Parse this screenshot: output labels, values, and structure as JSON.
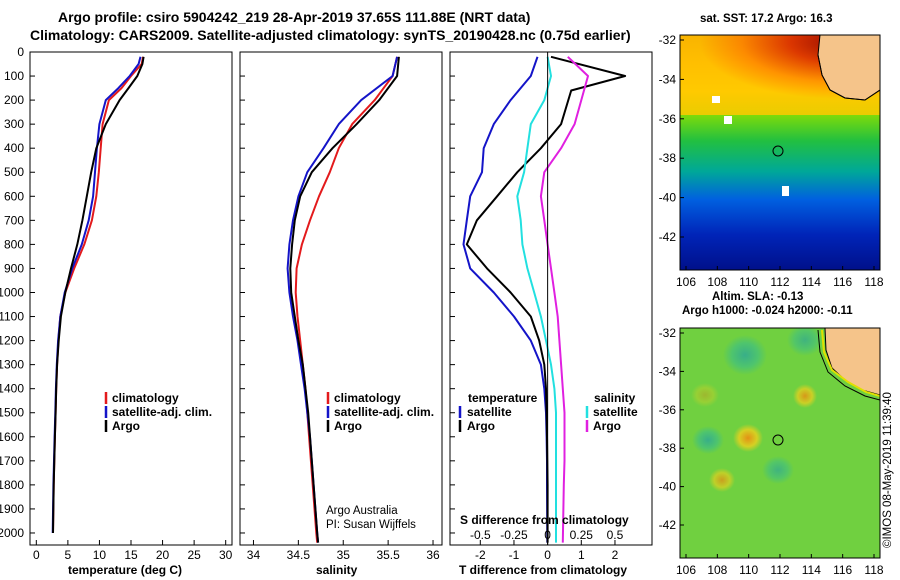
{
  "header": {
    "line1": "Argo profile: csiro 5904242_219 28-Apr-2019 37.65S 111.88E (NRT data)",
    "line2": "Climatology: CARS2009. Satellite-adjusted climatology: synTS_20190428.nc (0.75d earlier)"
  },
  "colors": {
    "climatology": "#e31a1c",
    "satellite": "#1414c8",
    "argo": "#000000",
    "t_diff": "#000000",
    "t_diff_sat": "#1414c8",
    "s_diff_sat": "#22e0e0",
    "s_diff_argo": "#e020e0"
  },
  "chart_data": [
    {
      "name": "temperature",
      "type": "line",
      "xlabel": "temperature (deg C)",
      "xlim": [
        -1,
        31
      ],
      "xticks": [
        0,
        5,
        10,
        15,
        20,
        25,
        30
      ],
      "ylim": [
        2050,
        0
      ],
      "yticks": [
        0,
        100,
        200,
        300,
        400,
        500,
        600,
        700,
        800,
        900,
        1000,
        1100,
        1200,
        1300,
        1400,
        1500,
        1600,
        1700,
        1800,
        1900,
        2000
      ],
      "legend": [
        "climatology",
        "satellite-adj. clim.",
        "Argo"
      ],
      "series": [
        {
          "name": "climatology",
          "x": [
            16.9,
            16.7,
            15.0,
            13.5,
            11.5,
            10.5,
            10.2,
            9.9,
            9.5,
            8.8,
            7.6,
            6.0,
            4.6,
            3.8,
            3.5,
            3.3,
            3.15,
            3.05,
            2.95,
            2.85,
            2.75,
            2.65
          ],
          "y": [
            20,
            50,
            100,
            150,
            200,
            300,
            400,
            500,
            600,
            700,
            800,
            900,
            1000,
            1100,
            1200,
            1300,
            1400,
            1500,
            1600,
            1700,
            1800,
            2000
          ]
        },
        {
          "name": "satellite-adj. clim.",
          "x": [
            16.5,
            16.2,
            14.8,
            13.0,
            11.0,
            10.0,
            9.6,
            9.3,
            9.0,
            8.3,
            7.2,
            5.7,
            4.5,
            3.8,
            3.45,
            3.25,
            3.1,
            3.0,
            2.9,
            2.8,
            2.7,
            2.6
          ],
          "y": [
            20,
            50,
            100,
            150,
            200,
            300,
            400,
            500,
            600,
            700,
            800,
            900,
            1000,
            1100,
            1200,
            1300,
            1400,
            1500,
            1600,
            1700,
            1800,
            2000
          ]
        },
        {
          "name": "Argo",
          "x": [
            17.0,
            16.8,
            16.0,
            14.6,
            13.2,
            11.0,
            9.5,
            8.7,
            8.0,
            7.3,
            6.5,
            5.5,
            4.6,
            3.9,
            3.55,
            3.3,
            3.15,
            3.05,
            2.95,
            2.85,
            2.75,
            2.65
          ],
          "y": [
            20,
            50,
            100,
            150,
            200,
            300,
            400,
            500,
            600,
            700,
            800,
            900,
            1000,
            1100,
            1200,
            1300,
            1400,
            1500,
            1600,
            1700,
            1800,
            2000
          ]
        }
      ]
    },
    {
      "name": "salinity",
      "type": "line",
      "xlabel": "salinity",
      "xlim": [
        33.85,
        36.1
      ],
      "xticks": [
        34,
        34.5,
        35,
        35.5,
        36
      ],
      "ylim": [
        2050,
        0
      ],
      "legend": [
        "climatology",
        "satellite-adj. clim.",
        "Argo"
      ],
      "annotation": [
        "Argo Australia",
        "PI: Susan Wijffels"
      ],
      "series": [
        {
          "name": "climatology",
          "x": [
            35.6,
            35.55,
            35.35,
            35.1,
            34.95,
            34.85,
            34.73,
            34.63,
            34.54,
            34.48,
            34.47,
            34.49,
            34.52,
            34.55,
            34.58,
            34.6,
            34.62,
            34.64,
            34.66,
            34.68,
            34.7,
            34.71
          ],
          "y": [
            20,
            100,
            200,
            300,
            400,
            500,
            600,
            700,
            800,
            900,
            1000,
            1100,
            1200,
            1300,
            1400,
            1500,
            1600,
            1700,
            1800,
            1900,
            2000,
            2040
          ]
        },
        {
          "name": "satellite-adj. clim.",
          "x": [
            35.6,
            35.55,
            35.2,
            34.95,
            34.78,
            34.6,
            34.5,
            34.44,
            34.4,
            34.38,
            34.4,
            34.44,
            34.49,
            34.53,
            34.57,
            34.6,
            34.63,
            34.65,
            34.67,
            34.69,
            34.71,
            34.72
          ],
          "y": [
            20,
            100,
            200,
            300,
            400,
            500,
            600,
            700,
            800,
            900,
            1000,
            1100,
            1200,
            1300,
            1400,
            1500,
            1600,
            1700,
            1800,
            1900,
            2000,
            2040
          ]
        },
        {
          "name": "Argo",
          "x": [
            35.62,
            35.6,
            35.4,
            35.15,
            34.88,
            34.65,
            34.52,
            34.46,
            34.43,
            34.41,
            34.42,
            34.46,
            34.5,
            34.55,
            34.58,
            34.61,
            34.63,
            34.65,
            34.67,
            34.69,
            34.71,
            34.72
          ],
          "y": [
            20,
            100,
            200,
            300,
            400,
            500,
            600,
            700,
            800,
            900,
            1000,
            1100,
            1200,
            1300,
            1400,
            1500,
            1600,
            1700,
            1800,
            1900,
            2000,
            2040
          ]
        }
      ]
    },
    {
      "name": "difference",
      "type": "line",
      "xlabel": "T difference from climatology",
      "top_label": "S difference from climatology",
      "xlim": [
        -2.9,
        3.1
      ],
      "xticks": [
        -2,
        -1,
        0,
        1,
        2
      ],
      "secondary_ticks": [
        "-0.5",
        "-0.25",
        "0",
        "0.25",
        "0.5"
      ],
      "secondary_tick_positions": [
        -2,
        -1,
        0,
        1,
        2
      ],
      "legend_groups": [
        {
          "title": "temperature",
          "items": [
            "satellite",
            "Argo"
          ]
        },
        {
          "title": "salinity",
          "items": [
            "satellite",
            "Argo"
          ]
        }
      ],
      "series": [
        {
          "name": "temperature satellite",
          "x": [
            -0.3,
            -0.5,
            -1.1,
            -1.6,
            -1.9,
            -1.95,
            -2.3,
            -2.4,
            -2.5,
            -2.3,
            -1.6,
            -1.0,
            -0.5,
            -0.2,
            -0.1,
            -0.05,
            -0.03,
            -0.02,
            -0.02,
            -0.01
          ],
          "y": [
            20,
            100,
            200,
            300,
            400,
            500,
            600,
            700,
            800,
            900,
            1000,
            1100,
            1200,
            1300,
            1400,
            1500,
            1600,
            1700,
            1800,
            2040
          ]
        },
        {
          "name": "temperature Argo",
          "x": [
            0.1,
            2.3,
            0.7,
            0.4,
            -0.2,
            -0.9,
            -1.5,
            -2.1,
            -2.4,
            -1.8,
            -1.1,
            -0.5,
            -0.25,
            -0.1,
            -0.05,
            -0.03,
            -0.02,
            -0.01,
            0,
            0
          ],
          "y": [
            20,
            100,
            160,
            300,
            400,
            500,
            600,
            700,
            800,
            900,
            1000,
            1100,
            1200,
            1300,
            1400,
            1500,
            1600,
            1700,
            1800,
            2040
          ]
        },
        {
          "name": "salinity satellite",
          "x": [
            0,
            0.1,
            -0.1,
            -0.5,
            -0.6,
            -0.7,
            -0.9,
            -0.8,
            -0.75,
            -0.6,
            -0.4,
            -0.2,
            -0.05,
            0.1,
            0.2,
            0.25,
            0.25,
            0.25,
            0.25,
            0.25
          ],
          "y": [
            20,
            100,
            200,
            300,
            400,
            500,
            600,
            700,
            800,
            900,
            1000,
            1100,
            1200,
            1300,
            1400,
            1500,
            1600,
            1700,
            1800,
            2040
          ]
        },
        {
          "name": "salinity Argo",
          "x": [
            0.6,
            1.2,
            1.0,
            0.8,
            0.4,
            -0.1,
            -0.2,
            -0.1,
            0,
            0.1,
            0.2,
            0.3,
            0.35,
            0.4,
            0.45,
            0.5,
            0.5,
            0.5,
            0.48,
            0.45
          ],
          "y": [
            20,
            100,
            200,
            300,
            400,
            500,
            600,
            700,
            800,
            900,
            1000,
            1100,
            1200,
            1300,
            1400,
            1500,
            1600,
            1700,
            1800,
            2040
          ]
        }
      ]
    },
    {
      "name": "sst-map",
      "type": "heatmap",
      "title": "sat. SST: 17.2 Argo: 16.3",
      "xticks": [
        "106",
        "108",
        "110",
        "112",
        "114",
        "116",
        "118"
      ],
      "yticks": [
        "-32",
        "-34",
        "-36",
        "-38",
        "-40",
        "-42"
      ],
      "marker": {
        "lon": 111.88,
        "lat": -37.65
      }
    },
    {
      "name": "sla-map",
      "type": "heatmap",
      "title_line1": "Altim. SLA: -0.13",
      "title_line2": "Argo h1000: -0.024 h2000: -0.11",
      "xticks": [
        "106",
        "108",
        "110",
        "112",
        "114",
        "116",
        "118"
      ],
      "yticks": [
        "-32",
        "-34",
        "-36",
        "-38",
        "-40",
        "-42"
      ],
      "marker": {
        "lon": 111.88,
        "lat": -37.65
      }
    }
  ],
  "watermark": "©IMOS 08-May-2019 11:39:40"
}
